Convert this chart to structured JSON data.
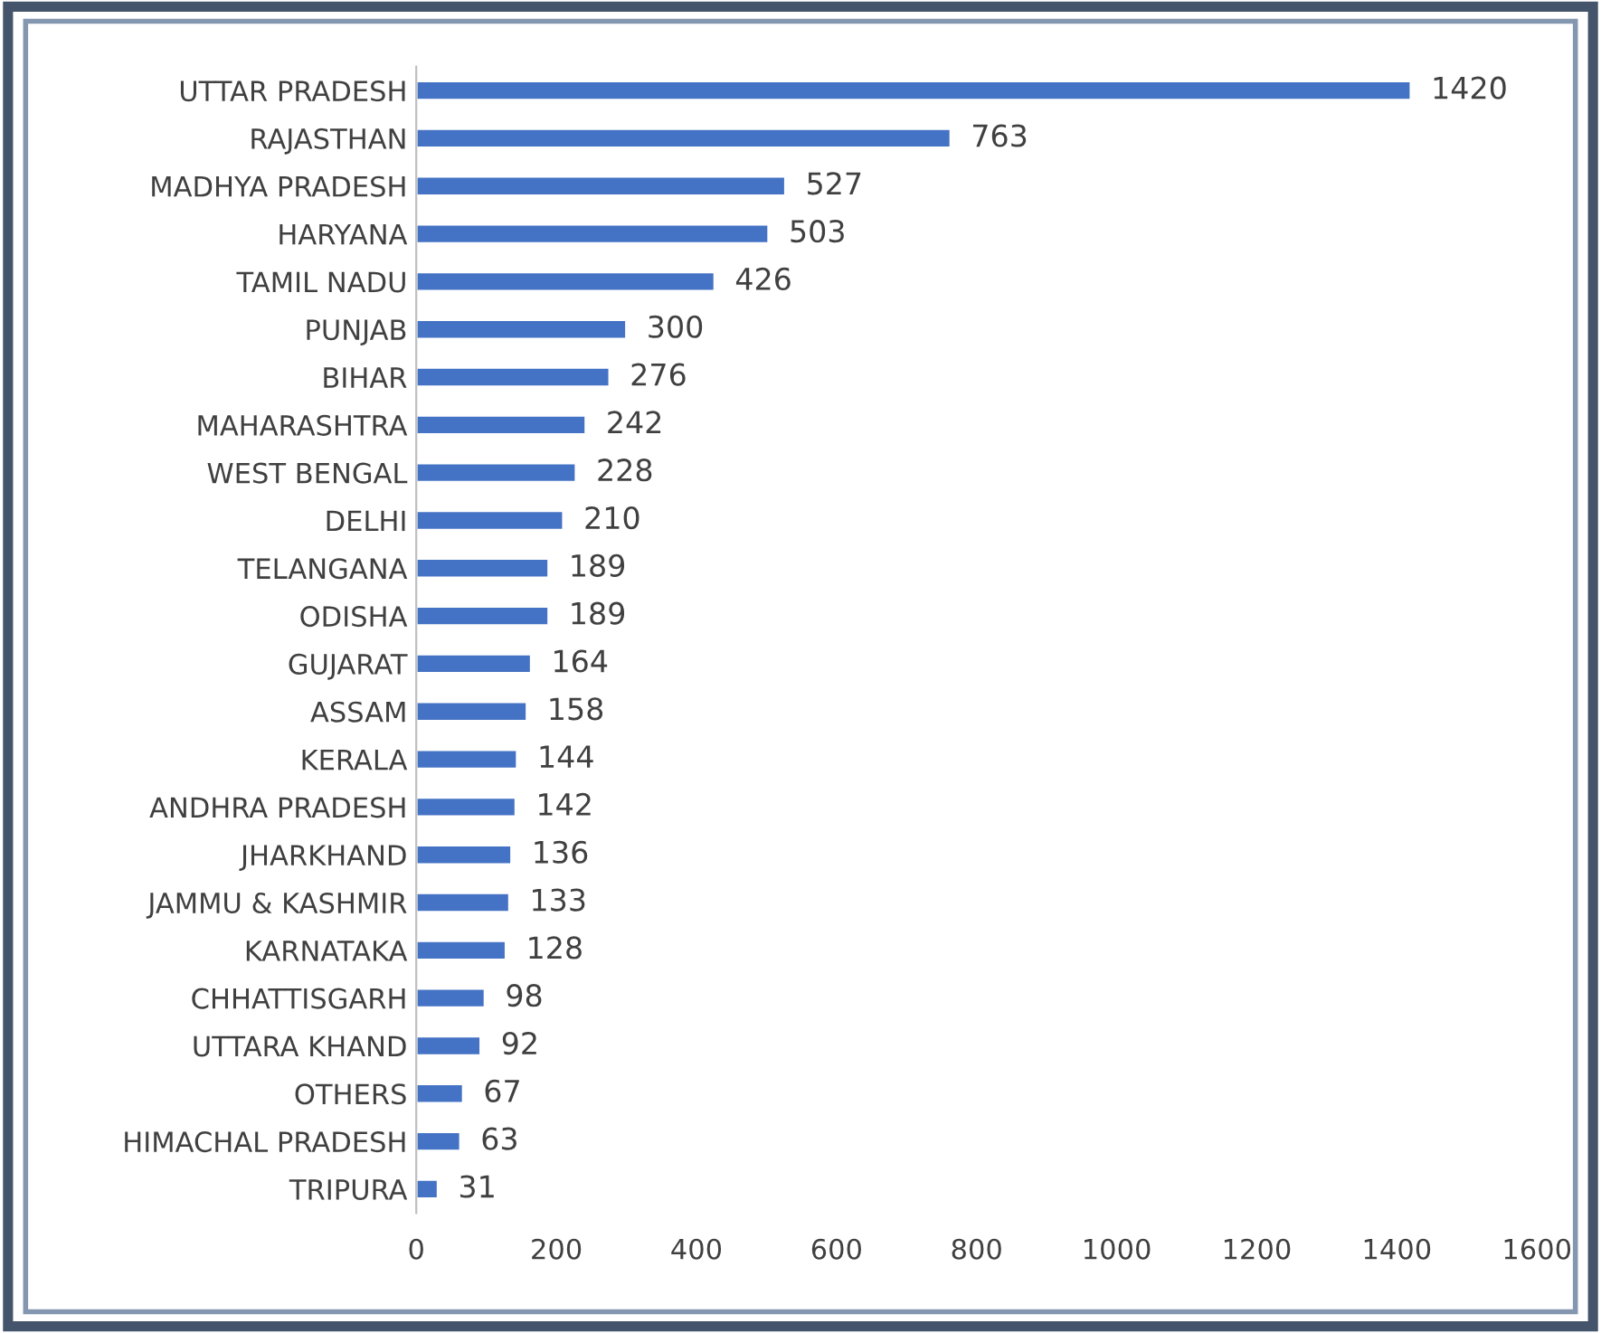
{
  "chart_data": {
    "type": "bar",
    "orientation": "horizontal",
    "categories": [
      "UTTAR PRADESH",
      "RAJASTHAN",
      "MADHYA PRADESH",
      "HARYANA",
      "TAMIL NADU",
      "PUNJAB",
      "BIHAR",
      "MAHARASHTRA",
      "WEST BENGAL",
      "DELHI",
      "TELANGANA",
      "ODISHA",
      "GUJARAT",
      "ASSAM",
      "KERALA",
      "ANDHRA PRADESH",
      "JHARKHAND",
      "JAMMU & KASHMIR",
      "KARNATAKA",
      "CHHATTISGARH",
      "UTTARA KHAND",
      "OTHERS",
      "HIMACHAL PRADESH",
      "TRIPURA"
    ],
    "values": [
      1420,
      763,
      527,
      503,
      426,
      300,
      276,
      242,
      228,
      210,
      189,
      189,
      164,
      158,
      144,
      142,
      136,
      133,
      128,
      98,
      92,
      67,
      63,
      31
    ],
    "color": "#4472c4",
    "xlim": [
      0,
      1600
    ],
    "xticks": [
      0,
      200,
      400,
      600,
      800,
      1000,
      1200,
      1400,
      1600
    ],
    "data_labels": true,
    "grid": false,
    "legend": false
  }
}
